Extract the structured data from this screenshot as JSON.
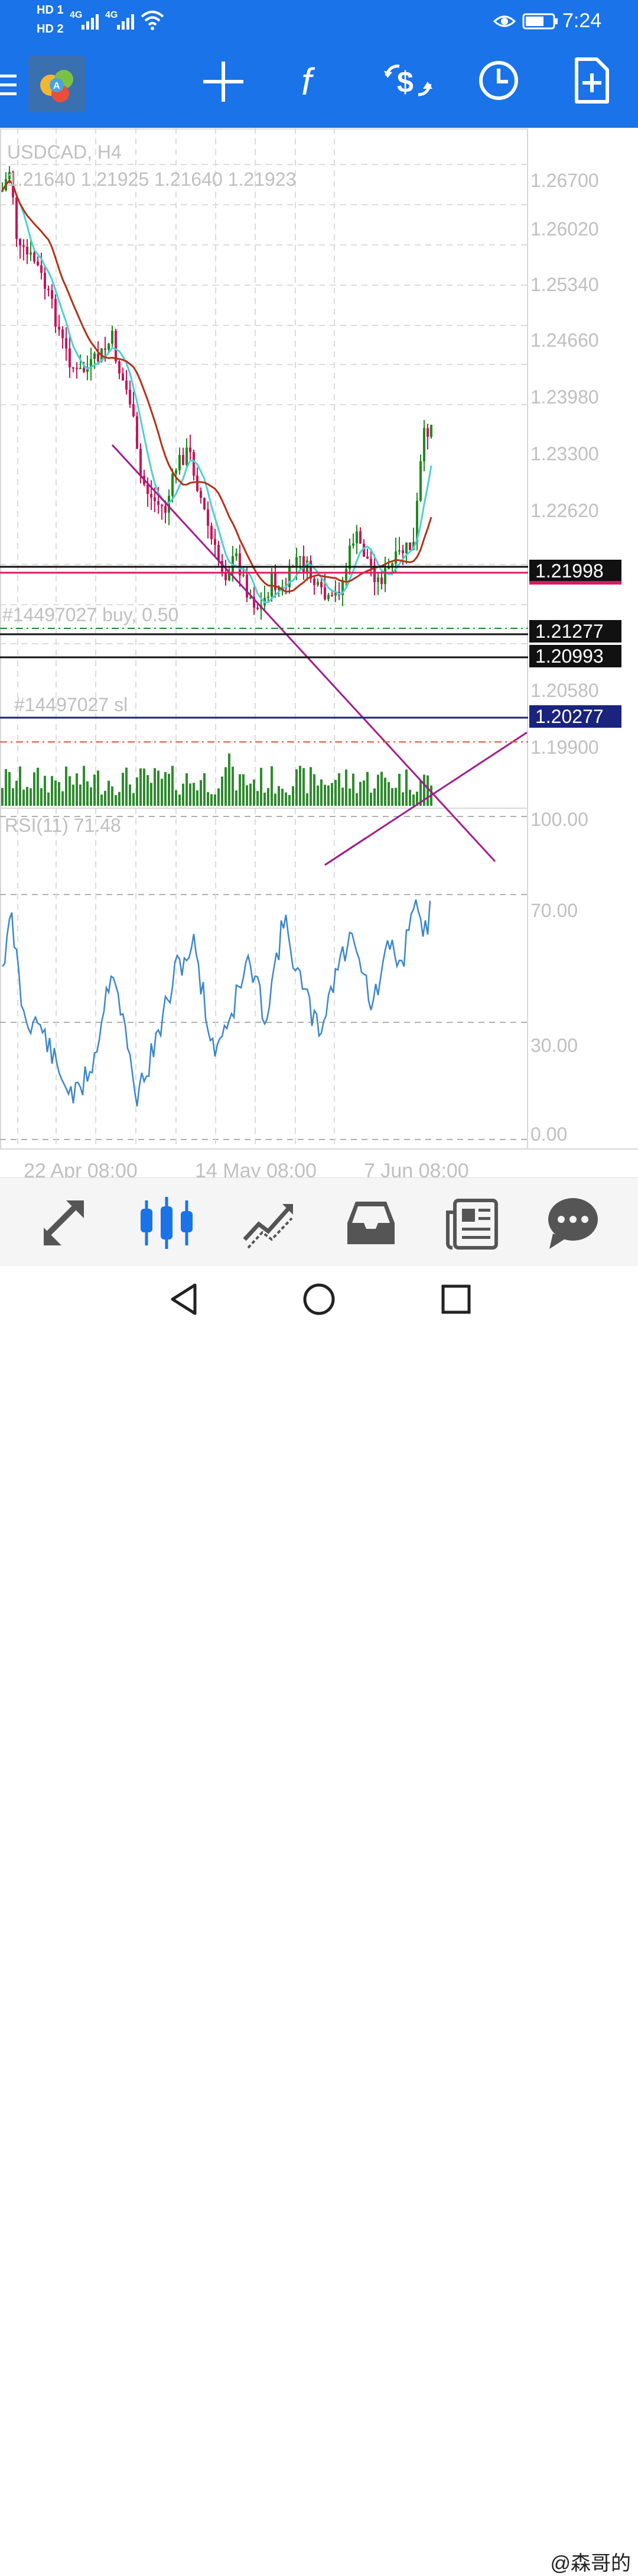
{
  "status_bar": {
    "left_indicators": [
      "HD 1",
      "HD 2",
      "4G",
      "4G"
    ],
    "time": "7:24",
    "icons": [
      "eye-icon",
      "battery-icon",
      "wifi-icon",
      "signal-icon"
    ]
  },
  "toolbar": {
    "items": [
      {
        "name": "menu-icon"
      },
      {
        "name": "app-logo"
      },
      {
        "name": "crosshair-icon"
      },
      {
        "name": "indicators-icon",
        "label": "f"
      },
      {
        "name": "trade-icon",
        "label": "$"
      },
      {
        "name": "clock-icon"
      },
      {
        "name": "new-document-icon"
      }
    ]
  },
  "chart": {
    "symbol_line": "USDCAD, H4",
    "ohlc_line": "1.21640 1.21925 1.21640 1.21923",
    "price_labels": [
      "1.26700",
      "1.26020",
      "1.25340",
      "1.24660",
      "1.23980",
      "1.23300",
      "1.22620",
      "1.20580",
      "1.19900"
    ],
    "level_labels": {
      "current": "1.21998",
      "buy": "1.21277",
      "support": "1.20993",
      "sl": "1.20277"
    },
    "order_labels": {
      "buy": "#14497027 buy, 0.50",
      "sl": "#14497027 sl"
    },
    "rsi_label": "RSI(11) 71.48",
    "rsi_levels": [
      "100.00",
      "70.00",
      "30.00",
      "0.00"
    ],
    "time_labels": [
      "22 Apr 08:00",
      "14 May 08:00",
      "7 Jun 08:00"
    ],
    "colors": {
      "bull": "#1f8a1f",
      "bear": "#c2185b",
      "ma_fast": "#4dd0d0",
      "ma_slow": "#b5301a",
      "trend": "#a21c8c",
      "rsi": "#3a86c8",
      "sl_line": "#1a237e",
      "current_line": "#d81b60"
    }
  },
  "bottom_nav": {
    "items": [
      {
        "name": "quotes-icon"
      },
      {
        "name": "chart-icon",
        "active": true
      },
      {
        "name": "trade-history-icon"
      },
      {
        "name": "inbox-icon"
      },
      {
        "name": "news-icon"
      },
      {
        "name": "chat-icon"
      }
    ]
  },
  "system_nav": {
    "watermark": "@森哥的"
  }
}
